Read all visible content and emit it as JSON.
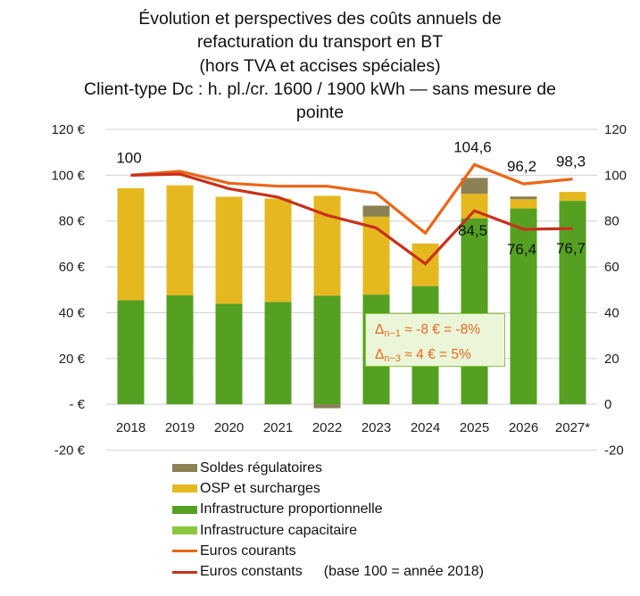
{
  "title_lines": [
    "Évolution et perspectives des coûts annuels de",
    "refacturation du transport en BT",
    "(hors TVA et accises spéciales)",
    "Client-type Dc : h. pl./cr. 1600 / 1900 kWh — sans mesure de",
    "pointe"
  ],
  "annotation": {
    "line1_prefix": "Δ",
    "line1_sub": "n−1",
    "line1_text": " ≈ -8 € = -8%",
    "line2_prefix": "Δ",
    "line2_sub": "n−3",
    "line2_text": " ≈ 4 € = 5%"
  },
  "legend_note": "(base 100 = année 2018)",
  "chart_data": {
    "type": "bar",
    "stacked": true,
    "title": "Évolution et perspectives des coûts annuels de refacturation du transport en BT (hors TVA et accises spéciales) Client-type Dc : h. pl./cr. 1600 / 1900 kWh — sans mesure de pointe",
    "categories": [
      "2018",
      "2019",
      "2020",
      "2021",
      "2022",
      "2023",
      "2024",
      "2025",
      "2026",
      "2027*"
    ],
    "y_left": {
      "range": [
        -20,
        120
      ],
      "ticks": [
        120,
        100,
        80,
        60,
        40,
        20,
        0,
        -20
      ],
      "tick_labels": [
        "120 €",
        "100 €",
        "80 €",
        "60 €",
        "40 €",
        "20 €",
        "-   €",
        "-20 €"
      ]
    },
    "y_right": {
      "range": [
        -20,
        120
      ],
      "ticks": [
        120,
        100,
        80,
        60,
        40,
        20,
        0,
        -20
      ],
      "tick_labels": [
        "120",
        "100",
        "80",
        "60",
        "40",
        "20",
        "0",
        "-20"
      ]
    },
    "grid": true,
    "legend_position": "bottom",
    "series": [
      {
        "name": "Infrastructure capacitaire",
        "kind": "bar",
        "axis": "left",
        "color": "#8cc63e",
        "values": [
          0,
          0,
          0,
          0,
          0,
          0,
          0,
          0,
          0,
          0
        ]
      },
      {
        "name": "Infrastructure proportionnelle",
        "kind": "bar",
        "axis": "left",
        "color": "#55a021",
        "values": [
          45.4,
          47.6,
          43.9,
          44.7,
          47.4,
          47.9,
          51.6,
          81.2,
          85.5,
          88.8
        ]
      },
      {
        "name": "OSP et surcharges",
        "kind": "bar",
        "axis": "left",
        "color": "#e5b820",
        "values": [
          48.9,
          48.0,
          46.7,
          45.1,
          43.6,
          34.0,
          18.6,
          10.7,
          4.0,
          3.9
        ]
      },
      {
        "name": "Soldes régulatoires",
        "kind": "bar",
        "axis": "left",
        "color": "#8c8155",
        "values": [
          0,
          0,
          0,
          0,
          -1.7,
          4.8,
          0,
          6.9,
          1.2,
          0
        ]
      },
      {
        "name": "Euros courants",
        "kind": "line",
        "axis": "right",
        "color": "#ec6514",
        "values": [
          100,
          101.7,
          96.5,
          95.2,
          95.2,
          92.1,
          74.7,
          104.6,
          96.2,
          98.3
        ],
        "data_labels": [
          "100",
          "",
          "",
          "",
          "",
          "",
          "",
          "104,6",
          "96,2",
          "98,3"
        ]
      },
      {
        "name": "Euros constants",
        "kind": "line",
        "axis": "right",
        "color": "#c8311b",
        "values": [
          100,
          100.5,
          94.1,
          90.4,
          82.5,
          77.0,
          61.3,
          84.5,
          76.4,
          76.7
        ],
        "data_labels": [
          "",
          "",
          "",
          "",
          "",
          "",
          "",
          "84,5",
          "76,4",
          "76,7"
        ]
      }
    ]
  }
}
